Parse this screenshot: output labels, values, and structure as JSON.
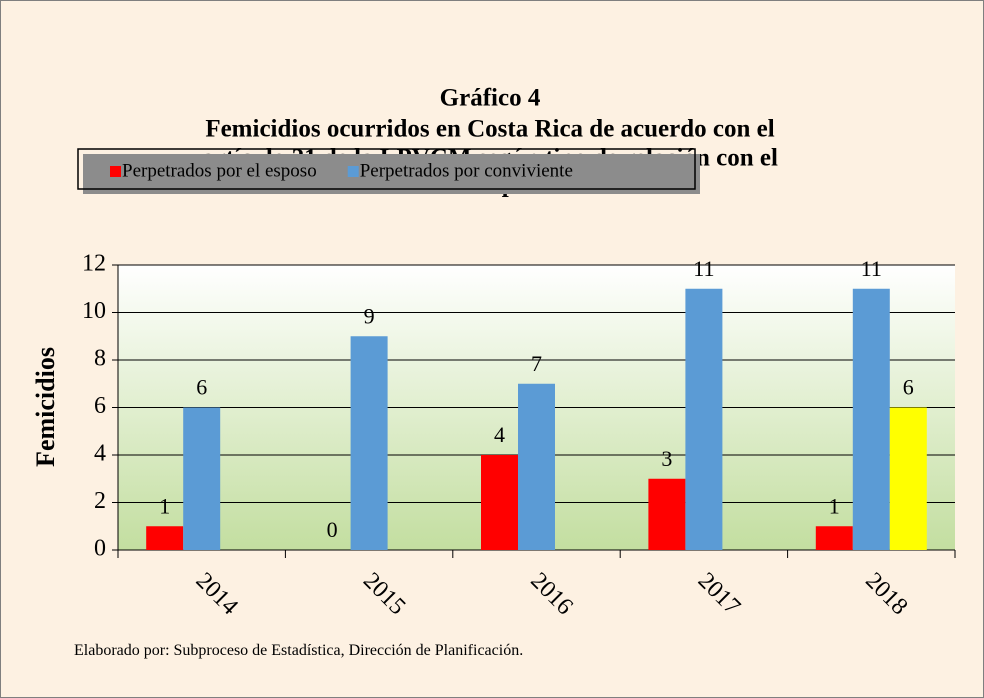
{
  "chart_data": {
    "type": "bar",
    "title_lines": [
      "Gráfico 4",
      "Femicidios ocurridos en Costa Rica de acuerdo con el",
      "artículo 21 de la LPVCM según tipo de relación con el",
      "homicida durante el período 2014-2018"
    ],
    "y_label": "Femicidios",
    "categories": [
      "2014",
      "2015",
      "2016",
      "2017",
      "2018"
    ],
    "series": [
      {
        "name": "Perpetrados por el esposo",
        "color": "#ff0000",
        "values": [
          1,
          0,
          4,
          3,
          1
        ]
      },
      {
        "name": "Perpetrados por conviviente",
        "color": "#5b9bd5",
        "values": [
          6,
          9,
          7,
          11,
          11
        ]
      },
      {
        "color": "#ffff00",
        "values": [
          null,
          null,
          null,
          null,
          6
        ]
      }
    ],
    "ylim": [
      0,
      12
    ],
    "yticks": [
      0,
      2,
      4,
      6,
      8,
      10,
      12
    ],
    "grid": true,
    "footnote": "Elaborado por: Subproceso de Estadística, Dirección de Planificación."
  }
}
